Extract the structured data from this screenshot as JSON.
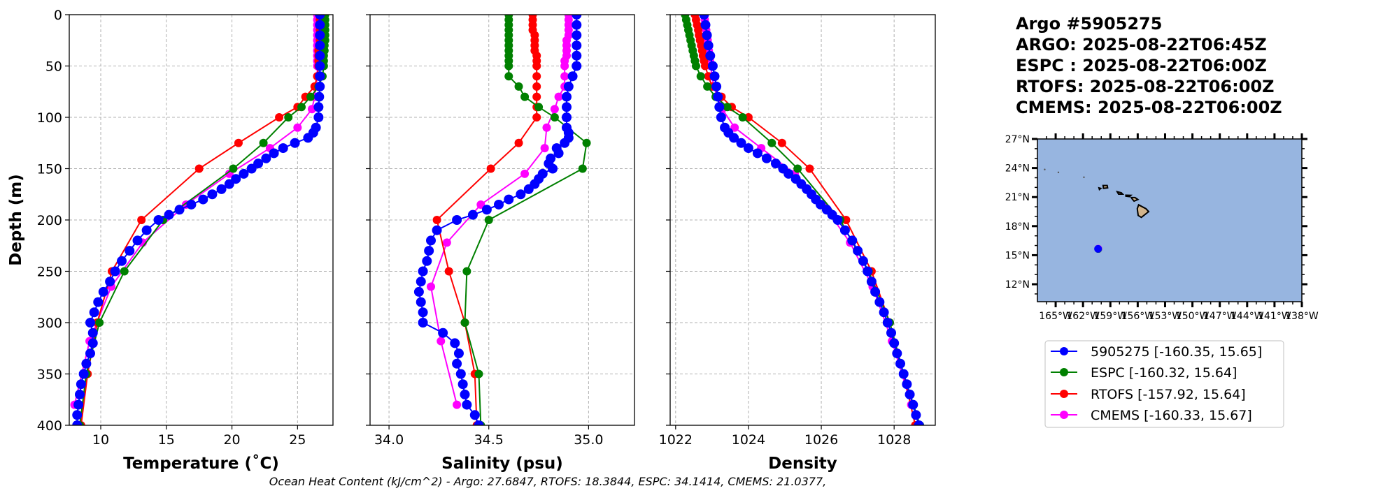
{
  "figure": {
    "title_lines": [
      "Argo #5905275",
      "ARGO: 2025-08-22T06:45Z",
      "ESPC : 2025-08-22T06:00Z",
      "RTOFS: 2025-08-22T06:00Z",
      "CMEMS: 2025-08-22T06:00Z"
    ],
    "footer": "Ocean Heat Content (kJ/cm^2) - Argo: 27.6847,  RTOFS: 18.3844,  ESPC: 34.1414,  CMEMS: 21.0377,",
    "ylabel": "Depth (m)",
    "colors": {
      "Argo": "#0000ff",
      "ESPC": "#008000",
      "RTOFS": "#ff0000",
      "CMEMS": "#ff00ff"
    }
  },
  "legend": [
    {
      "label": "5905275 [-160.35, 15.65]",
      "color": "#0000ff"
    },
    {
      "label": "ESPC [-160.32, 15.64]",
      "color": "#008000"
    },
    {
      "label": "RTOFS [-157.92, 15.64]",
      "color": "#ff0000"
    },
    {
      "label": "CMEMS [-160.33, 15.67]",
      "color": "#ff00ff"
    }
  ],
  "depths": {
    "argo": [
      0,
      10,
      20,
      30,
      40,
      50,
      60,
      70,
      80,
      90,
      100,
      110,
      115,
      120,
      125,
      130,
      135,
      140,
      145,
      150,
      155,
      160,
      165,
      170,
      175,
      180,
      185,
      190,
      195,
      200,
      210,
      220,
      230,
      240,
      250,
      260,
      270,
      280,
      290,
      300,
      310,
      320,
      330,
      340,
      350,
      360,
      370,
      380,
      390,
      400
    ],
    "model": [
      0,
      5,
      10,
      15,
      20,
      25,
      30,
      35,
      40,
      45,
      50,
      60,
      70,
      80,
      90,
      100,
      125,
      150,
      200,
      250,
      300,
      350,
      400
    ],
    "cmems": [
      0,
      5,
      10,
      15,
      20,
      25,
      30,
      35,
      40,
      45,
      50,
      60,
      70,
      80,
      92,
      110,
      130,
      155,
      185,
      222,
      265,
      318,
      380
    ]
  },
  "chart_data": [
    {
      "type": "line",
      "xlabel": "Temperature (˚C)",
      "ylabel": "Depth (m)",
      "xlim": [
        7.6,
        27.7
      ],
      "ylim": [
        400,
        0
      ],
      "xticks": [
        10,
        15,
        20,
        25
      ],
      "xtick_labels": [
        "10",
        "15",
        "20",
        "25"
      ],
      "yticks": [
        0,
        50,
        100,
        150,
        200,
        250,
        300,
        350,
        400
      ],
      "ytick_labels": [
        "0",
        "50",
        "100",
        "150",
        "200",
        "250",
        "300",
        "350",
        "400"
      ],
      "grid": true,
      "series": [
        {
          "name": "Argo",
          "depth": "argo",
          "values": [
            26.7,
            26.7,
            26.7,
            26.7,
            26.7,
            26.7,
            26.7,
            26.7,
            26.65,
            26.6,
            26.6,
            26.4,
            26.2,
            25.8,
            24.8,
            23.9,
            23.2,
            22.6,
            22.0,
            21.5,
            20.9,
            20.3,
            19.8,
            19.2,
            18.5,
            17.8,
            16.9,
            16.0,
            15.2,
            14.4,
            13.5,
            12.8,
            12.2,
            11.6,
            11.1,
            10.7,
            10.2,
            9.8,
            9.5,
            9.2,
            9.4,
            9.4,
            9.2,
            8.9,
            8.7,
            8.5,
            8.4,
            8.3,
            8.2,
            8.2
          ]
        },
        {
          "name": "ESPC",
          "depth": "model",
          "values": [
            27.1,
            27.1,
            27.1,
            27.1,
            27.1,
            27.1,
            27.05,
            27.05,
            27.0,
            27.0,
            27.0,
            26.9,
            26.6,
            26.0,
            25.3,
            24.3,
            22.4,
            20.1,
            14.75,
            11.8,
            9.9,
            8.9,
            8.4
          ]
        },
        {
          "name": "RTOFS",
          "depth": "model",
          "values": [
            26.7,
            26.7,
            26.7,
            26.7,
            26.7,
            26.7,
            26.7,
            26.6,
            26.6,
            26.6,
            26.6,
            26.5,
            26.3,
            25.6,
            25.0,
            23.6,
            20.5,
            17.5,
            13.1,
            10.85,
            9.73,
            9.0,
            8.5
          ]
        },
        {
          "name": "CMEMS",
          "depth": "cmems",
          "values": [
            26.5,
            26.5,
            26.5,
            26.5,
            26.5,
            26.5,
            26.5,
            26.5,
            26.5,
            26.5,
            26.5,
            26.5,
            26.4,
            26.3,
            26.1,
            25.0,
            22.9,
            19.8,
            16.5,
            13.2,
            10.8,
            9.15,
            8.0
          ]
        }
      ]
    },
    {
      "type": "line",
      "xlabel": "Salinity (psu)",
      "ylabel": "",
      "xlim": [
        33.905,
        35.23
      ],
      "ylim": [
        400,
        0
      ],
      "xticks": [
        34.0,
        34.5,
        35.0
      ],
      "xtick_labels": [
        "34.0",
        "34.5",
        "35.0"
      ],
      "yticks": [
        0,
        50,
        100,
        150,
        200,
        250,
        300,
        350,
        400
      ],
      "ytick_labels": [],
      "grid": true,
      "series": [
        {
          "name": "Argo",
          "depth": "argo",
          "values": [
            34.94,
            34.94,
            34.94,
            34.94,
            34.94,
            34.94,
            34.92,
            34.9,
            34.89,
            34.89,
            34.89,
            34.89,
            34.9,
            34.9,
            34.88,
            34.84,
            34.85,
            34.81,
            34.8,
            34.82,
            34.77,
            34.75,
            34.73,
            34.7,
            34.66,
            34.6,
            34.55,
            34.49,
            34.42,
            34.34,
            34.24,
            34.21,
            34.2,
            34.19,
            34.17,
            34.16,
            34.15,
            34.16,
            34.17,
            34.17,
            34.27,
            34.33,
            34.35,
            34.34,
            34.36,
            34.37,
            34.38,
            34.39,
            34.43,
            34.45
          ]
        },
        {
          "name": "ESPC",
          "depth": "model",
          "values": [
            34.6,
            34.6,
            34.6,
            34.6,
            34.6,
            34.6,
            34.6,
            34.6,
            34.6,
            34.6,
            34.6,
            34.6,
            34.65,
            34.68,
            34.75,
            34.83,
            34.99,
            34.97,
            34.5,
            34.39,
            34.38,
            34.45,
            34.46
          ]
        },
        {
          "name": "RTOFS",
          "depth": "model",
          "values": [
            34.72,
            34.72,
            34.72,
            34.72,
            34.73,
            34.73,
            34.73,
            34.73,
            34.74,
            34.74,
            34.74,
            34.74,
            34.74,
            34.74,
            34.74,
            34.74,
            34.65,
            34.51,
            34.24,
            34.3,
            34.38,
            34.43,
            34.44
          ]
        },
        {
          "name": "CMEMS",
          "depth": "cmems",
          "values": [
            34.9,
            34.9,
            34.9,
            34.9,
            34.9,
            34.89,
            34.89,
            34.89,
            34.89,
            34.88,
            34.88,
            34.88,
            34.88,
            34.85,
            34.83,
            34.79,
            34.78,
            34.68,
            34.46,
            34.29,
            34.21,
            34.26,
            34.34
          ]
        }
      ]
    },
    {
      "type": "line",
      "xlabel": "Density",
      "ylabel": "",
      "xlim": [
        1021.85,
        1029.13
      ],
      "ylim": [
        400,
        0
      ],
      "xticks": [
        1022,
        1024,
        1026,
        1028
      ],
      "xtick_labels": [
        "1022",
        "1024",
        "1026",
        "1028"
      ],
      "yticks": [
        0,
        50,
        100,
        150,
        200,
        250,
        300,
        350,
        400
      ],
      "ytick_labels": [],
      "grid": true,
      "series": [
        {
          "name": "Argo",
          "depth": "argo",
          "values": [
            1022.78,
            1022.82,
            1022.86,
            1022.9,
            1022.95,
            1023.02,
            1023.07,
            1023.12,
            1023.16,
            1023.2,
            1023.25,
            1023.35,
            1023.45,
            1023.6,
            1023.8,
            1024.0,
            1024.25,
            1024.5,
            1024.75,
            1024.95,
            1025.1,
            1025.3,
            1025.45,
            1025.6,
            1025.73,
            1025.85,
            1025.98,
            1026.15,
            1026.3,
            1026.45,
            1026.65,
            1026.85,
            1027.0,
            1027.15,
            1027.27,
            1027.38,
            1027.48,
            1027.6,
            1027.72,
            1027.82,
            1027.92,
            1028.0,
            1028.08,
            1028.17,
            1028.26,
            1028.35,
            1028.43,
            1028.52,
            1028.6,
            1028.68
          ]
        },
        {
          "name": "ESPC",
          "depth": "model",
          "values": [
            1022.26,
            1022.29,
            1022.32,
            1022.35,
            1022.38,
            1022.41,
            1022.44,
            1022.47,
            1022.5,
            1022.53,
            1022.56,
            1022.69,
            1022.87,
            1023.1,
            1023.42,
            1023.84,
            1024.64,
            1025.35,
            1026.52,
            1027.3,
            1027.88,
            1028.26,
            1028.71
          ]
        },
        {
          "name": "RTOFS",
          "depth": "model",
          "values": [
            1022.53,
            1022.56,
            1022.59,
            1022.62,
            1022.64,
            1022.67,
            1022.7,
            1022.73,
            1022.75,
            1022.78,
            1022.81,
            1022.9,
            1023.0,
            1023.26,
            1023.54,
            1024.0,
            1024.92,
            1025.68,
            1026.68,
            1027.38,
            1027.88,
            1028.26,
            1028.58
          ]
        },
        {
          "name": "CMEMS",
          "depth": "cmems",
          "values": [
            1022.78,
            1022.8,
            1022.82,
            1022.84,
            1022.86,
            1022.88,
            1022.9,
            1022.91,
            1022.93,
            1022.94,
            1022.96,
            1023.0,
            1023.05,
            1023.15,
            1023.28,
            1023.62,
            1024.35,
            1025.27,
            1026.05,
            1026.79,
            1027.41,
            1027.94,
            1028.47
          ]
        }
      ]
    }
  ],
  "map": {
    "lon_range": [
      -167,
      -138
    ],
    "lat_range": [
      10.2,
      27
    ],
    "lat_ticks": [
      12,
      15,
      18,
      21,
      24,
      27
    ],
    "lat_labels": [
      "12°N",
      "15°N",
      "18°N",
      "21°N",
      "24°N",
      "27°N"
    ],
    "lon_ticks": [
      -165,
      -162,
      -159,
      -156,
      -153,
      -150,
      -147,
      -144,
      -141,
      -138
    ],
    "lon_labels": [
      "165°W",
      "162°W",
      "159°W",
      "156°W",
      "153°W",
      "150°W",
      "147°W",
      "144°W",
      "141°W",
      "138°W"
    ],
    "ocean_color": "#97b5e0",
    "land_color": "#d2b48c",
    "points": [
      {
        "name": "ESPC",
        "lon": -160.32,
        "lat": 15.64,
        "color": "#008000"
      },
      {
        "name": "CMEMS",
        "lon": -160.33,
        "lat": 15.67,
        "color": "#ff00ff"
      },
      {
        "name": "Argo",
        "lon": -160.35,
        "lat": 15.65,
        "color": "#0000ff"
      }
    ]
  }
}
